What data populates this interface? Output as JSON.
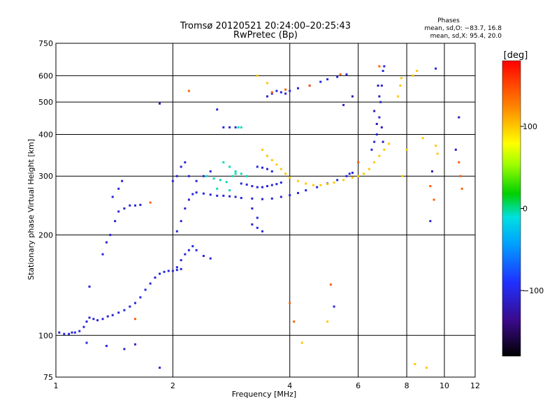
{
  "chart_data": {
    "type": "scatter",
    "title": "Tromsø 20120521 20:24:00–20:25:43",
    "subtitle": "RwPretec (Bp)",
    "xlabel": "Frequency [MHz]",
    "ylabel": "Stationary phase Virtual Height [km]",
    "x_scale": "log",
    "y_scale": "log",
    "xlim": [
      1,
      12
    ],
    "ylim": [
      75,
      750
    ],
    "x_ticks": [
      "1",
      "2",
      "4",
      "6",
      "8",
      "10",
      "12"
    ],
    "y_ticks": [
      "75",
      "100",
      "200",
      "300",
      "400",
      "500",
      "600",
      "750"
    ],
    "grid": true,
    "stats": {
      "title": "Phases",
      "line1": "mean, sd,O: −83.7, 16.8",
      "line2": "mean, sd,X:  95.4, 20.0"
    },
    "colorbar": {
      "label": "[deg]",
      "ticks": [
        "100",
        "0",
        "−100"
      ],
      "range": [
        -180,
        180
      ]
    },
    "series": [
      {
        "phase_deg": -105,
        "points": [
          [
            1.02,
            102
          ],
          [
            1.05,
            101
          ],
          [
            1.08,
            101
          ],
          [
            1.1,
            102
          ],
          [
            1.12,
            102
          ],
          [
            1.15,
            103
          ],
          [
            1.18,
            106
          ],
          [
            1.2,
            110
          ],
          [
            1.22,
            113
          ],
          [
            1.25,
            112
          ],
          [
            1.28,
            111
          ],
          [
            1.32,
            112
          ],
          [
            1.36,
            114
          ],
          [
            1.4,
            115
          ],
          [
            1.45,
            117
          ],
          [
            1.5,
            119
          ],
          [
            1.55,
            122
          ],
          [
            1.6,
            125
          ],
          [
            1.65,
            130
          ],
          [
            1.7,
            137
          ],
          [
            1.75,
            143
          ],
          [
            1.8,
            149
          ],
          [
            1.85,
            153
          ],
          [
            1.9,
            155
          ],
          [
            1.95,
            156
          ],
          [
            2.0,
            156
          ],
          [
            2.05,
            157
          ],
          [
            2.1,
            158
          ],
          [
            1.22,
            140
          ],
          [
            1.32,
            175
          ],
          [
            1.35,
            190
          ],
          [
            1.38,
            200
          ],
          [
            1.42,
            220
          ],
          [
            1.45,
            235
          ],
          [
            1.5,
            240
          ],
          [
            1.55,
            245
          ],
          [
            1.6,
            245
          ],
          [
            1.65,
            246
          ],
          [
            1.4,
            260
          ],
          [
            1.45,
            275
          ],
          [
            1.48,
            290
          ],
          [
            2.05,
            205
          ],
          [
            2.1,
            220
          ],
          [
            2.15,
            240
          ],
          [
            2.2,
            255
          ],
          [
            2.25,
            265
          ],
          [
            2.3,
            268
          ],
          [
            2.4,
            266
          ],
          [
            2.5,
            264
          ],
          [
            2.6,
            262
          ],
          [
            2.7,
            262
          ],
          [
            2.8,
            261
          ],
          [
            2.9,
            260
          ],
          [
            3.0,
            258
          ],
          [
            3.2,
            257
          ],
          [
            3.4,
            256
          ],
          [
            3.6,
            257
          ],
          [
            3.8,
            260
          ],
          [
            4.0,
            263
          ],
          [
            4.2,
            267
          ],
          [
            4.4,
            272
          ],
          [
            4.7,
            278
          ],
          [
            5.0,
            285
          ],
          [
            5.3,
            292
          ],
          [
            5.6,
            300
          ],
          [
            5.7,
            305
          ],
          [
            5.8,
            307
          ],
          [
            2.05,
            160
          ],
          [
            2.1,
            168
          ],
          [
            2.15,
            175
          ],
          [
            2.2,
            180
          ],
          [
            2.25,
            185
          ],
          [
            2.3,
            180
          ],
          [
            2.4,
            173
          ],
          [
            2.5,
            170
          ],
          [
            2.0,
            290
          ],
          [
            2.05,
            300
          ],
          [
            2.1,
            320
          ],
          [
            2.15,
            330
          ],
          [
            2.2,
            300
          ],
          [
            2.3,
            290
          ],
          [
            2.4,
            300
          ],
          [
            2.5,
            310
          ],
          [
            3.0,
            285
          ],
          [
            3.1,
            283
          ],
          [
            3.2,
            280
          ],
          [
            3.3,
            278
          ],
          [
            3.4,
            278
          ],
          [
            3.5,
            280
          ],
          [
            3.6,
            282
          ],
          [
            3.7,
            284
          ],
          [
            3.8,
            287
          ],
          [
            3.3,
            320
          ],
          [
            3.4,
            318
          ],
          [
            3.5,
            315
          ],
          [
            3.6,
            310
          ],
          [
            3.2,
            215
          ],
          [
            3.3,
            210
          ],
          [
            3.4,
            205
          ],
          [
            3.3,
            225
          ],
          [
            3.2,
            240
          ],
          [
            3.5,
            520
          ],
          [
            3.6,
            530
          ],
          [
            3.7,
            540
          ],
          [
            3.8,
            535
          ],
          [
            3.9,
            530
          ],
          [
            4.0,
            540
          ],
          [
            4.2,
            550
          ],
          [
            4.5,
            560
          ],
          [
            4.8,
            575
          ],
          [
            5.0,
            585
          ],
          [
            5.3,
            595
          ],
          [
            5.6,
            605
          ],
          [
            2.6,
            475
          ],
          [
            2.7,
            420
          ],
          [
            2.8,
            420
          ],
          [
            2.9,
            420
          ],
          [
            6.5,
            360
          ],
          [
            6.6,
            380
          ],
          [
            6.7,
            400
          ],
          [
            6.8,
            450
          ],
          [
            6.85,
            500
          ],
          [
            6.9,
            560
          ],
          [
            6.95,
            620
          ],
          [
            7.0,
            640
          ],
          [
            1.2,
            95
          ],
          [
            1.35,
            93
          ],
          [
            1.5,
            91
          ],
          [
            1.6,
            94
          ],
          [
            1.85,
            80
          ],
          [
            9.5,
            630
          ],
          [
            9.2,
            220
          ],
          [
            5.2,
            122
          ]
        ]
      },
      {
        "phase_deg": -5,
        "points": [
          [
            2.45,
            300
          ],
          [
            2.55,
            295
          ],
          [
            2.65,
            292
          ],
          [
            2.75,
            288
          ],
          [
            2.85,
            300
          ],
          [
            2.9,
            305
          ],
          [
            2.7,
            330
          ],
          [
            2.8,
            320
          ],
          [
            2.9,
            310
          ],
          [
            2.6,
            275
          ],
          [
            2.8,
            272
          ],
          [
            3.0,
            305
          ],
          [
            3.1,
            300
          ],
          [
            2.95,
            420
          ],
          [
            3.0,
            420
          ]
        ]
      },
      {
        "phase_deg": 100,
        "points": [
          [
            3.4,
            360
          ],
          [
            3.5,
            345
          ],
          [
            3.6,
            335
          ],
          [
            3.7,
            325
          ],
          [
            3.8,
            315
          ],
          [
            3.9,
            305
          ],
          [
            4.0,
            297
          ],
          [
            4.2,
            290
          ],
          [
            4.4,
            285
          ],
          [
            4.6,
            282
          ],
          [
            4.8,
            282
          ],
          [
            5.0,
            284
          ],
          [
            5.2,
            287
          ],
          [
            5.5,
            292
          ],
          [
            5.8,
            297
          ],
          [
            6.0,
            300
          ],
          [
            6.2,
            305
          ],
          [
            6.4,
            315
          ],
          [
            6.6,
            330
          ],
          [
            6.8,
            345
          ],
          [
            7.0,
            360
          ],
          [
            7.2,
            375
          ],
          [
            7.6,
            520
          ],
          [
            7.7,
            560
          ],
          [
            7.75,
            590
          ],
          [
            8.3,
            600
          ],
          [
            8.5,
            620
          ],
          [
            8.8,
            390
          ],
          [
            9.5,
            370
          ],
          [
            9.6,
            350
          ],
          [
            3.3,
            600
          ],
          [
            3.5,
            570
          ],
          [
            5.0,
            110
          ],
          [
            4.3,
            95
          ],
          [
            9.0,
            80
          ],
          [
            8.4,
            82
          ],
          [
            7.8,
            300
          ],
          [
            8.0,
            360
          ]
        ]
      },
      {
        "phase_deg": 140,
        "points": [
          [
            2.2,
            540
          ],
          [
            3.6,
            535
          ],
          [
            3.9,
            545
          ],
          [
            4.5,
            560
          ],
          [
            6.8,
            640
          ],
          [
            9.2,
            280
          ],
          [
            9.4,
            255
          ],
          [
            10.9,
            330
          ],
          [
            11.0,
            300
          ],
          [
            11.1,
            275
          ],
          [
            5.4,
            605
          ],
          [
            6.0,
            330
          ],
          [
            5.1,
            142
          ],
          [
            4.0,
            125
          ],
          [
            4.1,
            110
          ],
          [
            1.6,
            112
          ],
          [
            1.75,
            250
          ]
        ]
      },
      {
        "phase_deg": -120,
        "points": [
          [
            6.6,
            470
          ],
          [
            6.7,
            430
          ],
          [
            6.8,
            520
          ],
          [
            6.75,
            560
          ],
          [
            6.9,
            420
          ],
          [
            6.95,
            380
          ],
          [
            5.5,
            490
          ],
          [
            5.8,
            520
          ],
          [
            1.85,
            495
          ],
          [
            10.9,
            450
          ],
          [
            10.7,
            360
          ],
          [
            9.3,
            310
          ]
        ]
      }
    ]
  }
}
